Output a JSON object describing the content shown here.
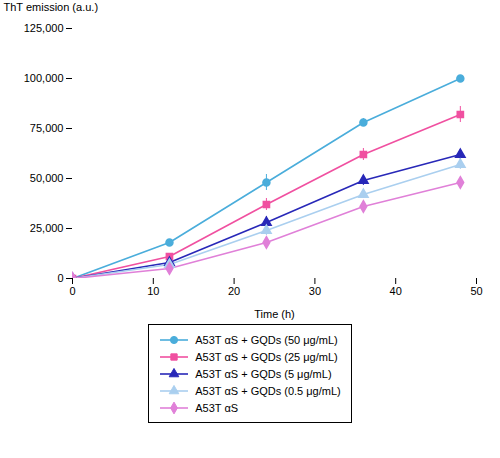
{
  "chart_data": {
    "type": "line",
    "xlabel": "Time (h)",
    "ylabel": "ThT emission (a.u.)",
    "x": [
      0,
      12,
      24,
      36,
      48
    ],
    "series": [
      {
        "name": "A53T αS + GQDs (50 μg/mL)",
        "color": "#4AADDB",
        "marker": "circle",
        "values": [
          0,
          18000,
          48000,
          78000,
          100000
        ],
        "yerr": [
          0,
          1500,
          4000,
          2000,
          1500
        ]
      },
      {
        "name": "A53T αS + GQDs (25 μg/mL)",
        "color": "#F050A0",
        "marker": "square",
        "values": [
          0,
          11000,
          37000,
          62000,
          82000
        ],
        "yerr": [
          0,
          1000,
          3000,
          3000,
          4000
        ]
      },
      {
        "name": "A53T αS + GQDs (5 μg/mL)",
        "color": "#2828B8",
        "marker": "triangle",
        "values": [
          0,
          8000,
          28000,
          49000,
          62000
        ],
        "yerr": [
          0,
          1000,
          3000,
          2500,
          2500
        ]
      },
      {
        "name": "A53T αS + GQDs (0.5 μg/mL)",
        "color": "#AACFEF",
        "marker": "triangle",
        "values": [
          0,
          7000,
          24000,
          42000,
          57000
        ],
        "yerr": [
          0,
          800,
          2500,
          2000,
          2500
        ]
      },
      {
        "name": "A53T αS",
        "color": "#E080D8",
        "marker": "diamond",
        "values": [
          0,
          5000,
          18000,
          36000,
          48000
        ],
        "yerr": [
          0,
          700,
          2000,
          2000,
          2000
        ]
      }
    ],
    "xlim": [
      0,
      50
    ],
    "ylim": [
      0,
      125000
    ],
    "xticks": [
      0,
      10,
      20,
      30,
      40,
      50
    ],
    "yticks": [
      0,
      {
        "value": 25000,
        "label": "25,000"
      },
      {
        "value": 50000,
        "label": "50,000"
      },
      {
        "value": 75000,
        "label": "75,000"
      },
      {
        "value": 100000,
        "label": "100,000"
      },
      {
        "value": 125000,
        "label": "125,000"
      }
    ],
    "legend": "bottom",
    "grid": false
  }
}
